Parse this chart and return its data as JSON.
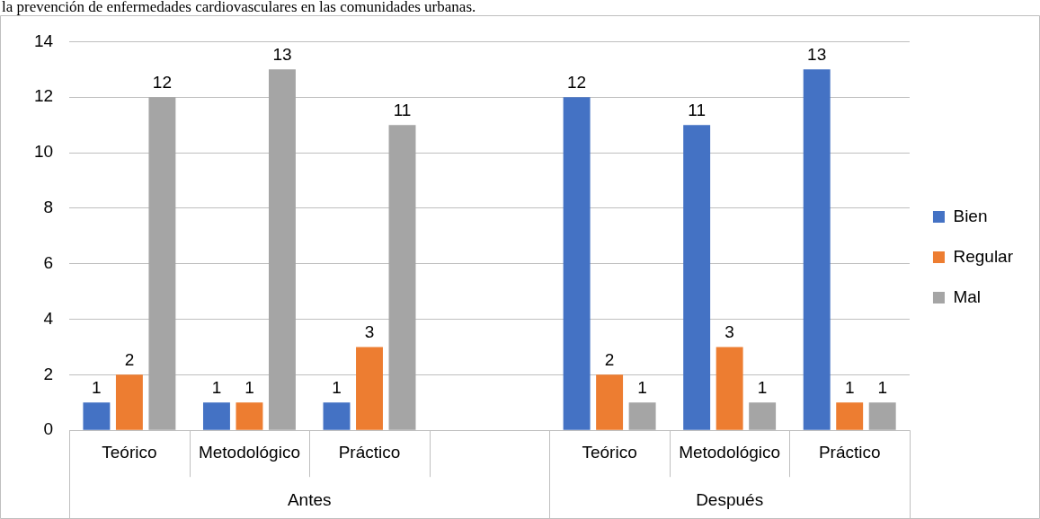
{
  "chart_data": {
    "type": "bar",
    "title": "la prevención de enfermedades cardiovasculares en las comunidades urbanas.",
    "categories": [
      "Teórico",
      "Metodológico",
      "Práctico",
      null,
      "Teórico",
      "Metodológico",
      "Práctico"
    ],
    "series": [
      {
        "name": "Bien",
        "color": "#4472c4",
        "values": [
          1,
          1,
          1,
          null,
          12,
          11,
          13
        ]
      },
      {
        "name": "Regular",
        "color": "#ed7d31",
        "values": [
          2,
          1,
          3,
          null,
          2,
          3,
          1
        ]
      },
      {
        "name": "Mal",
        "color": "#a5a5a5",
        "values": [
          12,
          13,
          11,
          null,
          1,
          1,
          1
        ]
      }
    ],
    "annotations": [
      "Antes",
      "Después"
    ],
    "ylim": [
      0,
      14
    ],
    "yticks": [
      0,
      2,
      4,
      6,
      8,
      10,
      12,
      14
    ],
    "grid": "y",
    "legend": "right",
    "data_labels": true
  }
}
